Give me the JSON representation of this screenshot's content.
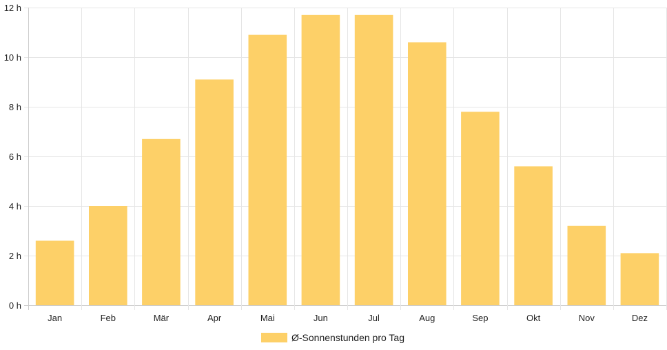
{
  "chart_data": {
    "type": "bar",
    "categories": [
      "Jan",
      "Feb",
      "Mär",
      "Apr",
      "Mai",
      "Jun",
      "Jul",
      "Aug",
      "Sep",
      "Okt",
      "Nov",
      "Dez"
    ],
    "series": [
      {
        "name": "Ø-Sonnenstunden pro Tag",
        "values": [
          2.6,
          4.0,
          6.7,
          9.1,
          10.9,
          11.7,
          11.7,
          10.6,
          7.8,
          5.6,
          3.2,
          2.1
        ],
        "color": "#fdd068"
      }
    ],
    "ylim": [
      0,
      12
    ],
    "yticks": [
      0,
      2,
      4,
      6,
      8,
      10,
      12
    ],
    "ytick_labels": [
      "0 h",
      "2 h",
      "4 h",
      "6 h",
      "8 h",
      "10 h",
      "12 h"
    ],
    "grid": true,
    "legend_position": "bottom-center",
    "grid_color": "#e5e5e5",
    "axis_color": "#cccccc"
  }
}
